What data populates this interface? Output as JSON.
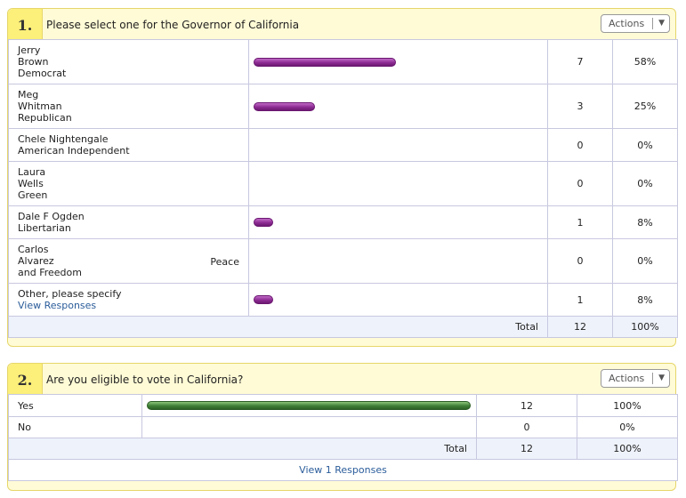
{
  "q1": {
    "number": "1.",
    "question": "Please select one for the Governor of California",
    "actions_label": "Actions",
    "options": [
      {
        "lines": [
          "Jerry",
          "Brown",
          "Democrat"
        ],
        "count": "7",
        "percent": "58%",
        "fraction": 0.58
      },
      {
        "lines": [
          "Meg",
          "Whitman",
          "Republican"
        ],
        "count": "3",
        "percent": "25%",
        "fraction": 0.25
      },
      {
        "lines": [
          "Chele Nightengale",
          "American Independent"
        ],
        "count": "0",
        "percent": "0%",
        "fraction": 0
      },
      {
        "lines": [
          "Laura",
          "Wells",
          "Green"
        ],
        "count": "0",
        "percent": "0%",
        "fraction": 0
      },
      {
        "lines": [
          "Dale F Ogden",
          "Libertarian"
        ],
        "count": "1",
        "percent": "8%",
        "fraction": 0.08
      },
      {
        "lines": [
          "Carlos",
          "Alvarez",
          "and Freedom"
        ],
        "right_text": "Peace",
        "count": "0",
        "percent": "0%",
        "fraction": 0
      },
      {
        "lines": [
          "Other, please specify"
        ],
        "link": "View Responses",
        "count": "1",
        "percent": "8%",
        "fraction": 0.08
      }
    ],
    "total_label": "Total",
    "total_count": "12",
    "total_percent": "100%"
  },
  "q2": {
    "number": "2.",
    "question": "Are you eligible to vote in California?",
    "actions_label": "Actions",
    "options": [
      {
        "label": "Yes",
        "count": "12",
        "percent": "100%",
        "fraction": 1.0
      },
      {
        "label": "No",
        "count": "0",
        "percent": "0%",
        "fraction": 0
      }
    ],
    "total_label": "Total",
    "total_count": "12",
    "total_percent": "100%",
    "view_link": "View 1 Responses"
  },
  "colors": {
    "panel_bg": "#fffbd6",
    "panel_border": "#e6d66a",
    "number_bg": "#fcef7a",
    "bar_purple": "#8d2b93",
    "bar_green": "#3f7e36",
    "link": "#2a5c9a"
  }
}
